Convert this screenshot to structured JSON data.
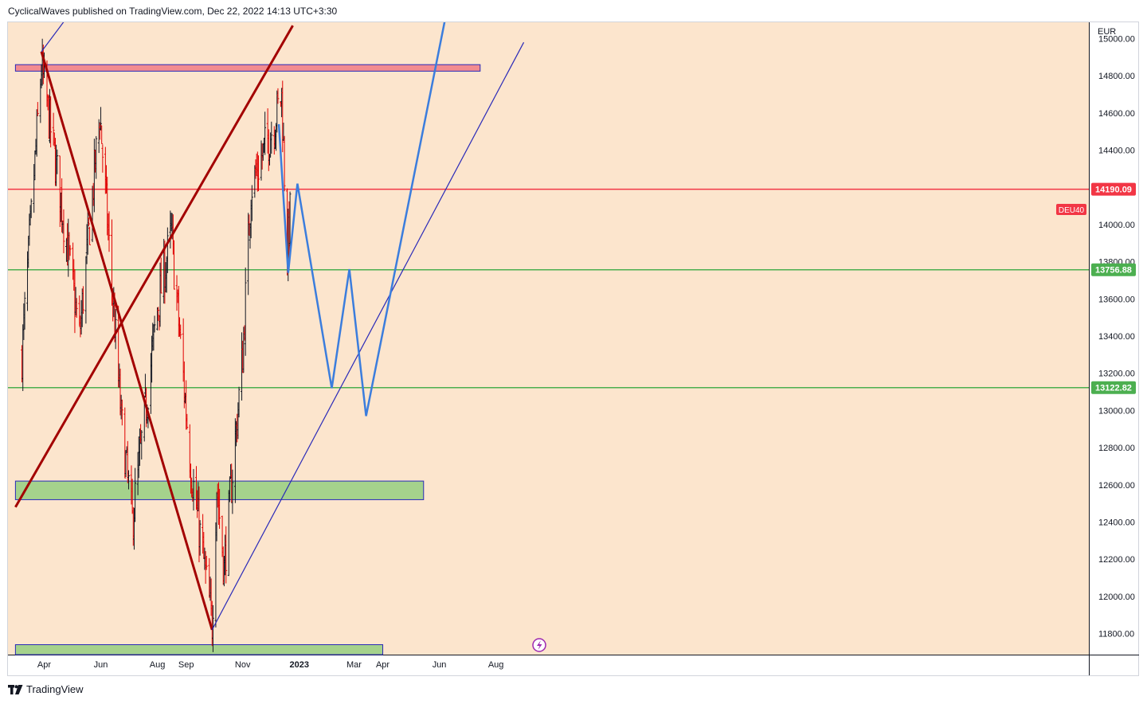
{
  "header": {
    "published_line": "CyclicalWaves published on TradingView.com, Dec 22, 2022 14:13 UTC+3:30"
  },
  "footer": {
    "brand": "TradingView",
    "logo_icon": "tradingview-logo-icon"
  },
  "chart_data": {
    "type": "candlestick",
    "symbol": "DEU40",
    "currency": "EUR",
    "ylim": [
      11680,
      15050
    ],
    "y_ticks": [
      11800,
      12000,
      12200,
      12400,
      12600,
      12800,
      13000,
      13200,
      13400,
      13600,
      13800,
      14000,
      14200,
      14400,
      14600,
      14800,
      15000
    ],
    "y_tick_labels": [
      "11800.00",
      "12000.00",
      "12200.00",
      "12400.00",
      "12600.00",
      "12800.00",
      "13000.00",
      "13200.00",
      "13400.00",
      "13600.00",
      "13800.00",
      "14000.00",
      "14200.00",
      "14400.00",
      "14600.00",
      "14800.00",
      "15000.00"
    ],
    "x_ticks": [
      {
        "date": "2022-04-01",
        "label": "Apr"
      },
      {
        "date": "2022-06-01",
        "label": "Jun"
      },
      {
        "date": "2022-08-01",
        "label": "Aug"
      },
      {
        "date": "2022-09-01",
        "label": "Sep"
      },
      {
        "date": "2022-11-01",
        "label": "Nov"
      },
      {
        "date": "2023-01-01",
        "label": "2023"
      },
      {
        "date": "2023-03-01",
        "label": "Mar"
      },
      {
        "date": "2023-04-01",
        "label": "Apr"
      },
      {
        "date": "2023-06-01",
        "label": "Jun"
      },
      {
        "date": "2023-08-01",
        "label": "Aug"
      }
    ],
    "price_path": [
      {
        "date": "2022-03-08",
        "close": 13300
      },
      {
        "date": "2022-03-29",
        "close": 14850
      },
      {
        "date": "2022-04-20",
        "close": 14100
      },
      {
        "date": "2022-05-09",
        "close": 13400
      },
      {
        "date": "2022-05-31",
        "close": 14600
      },
      {
        "date": "2022-06-23",
        "close": 12950
      },
      {
        "date": "2022-07-05",
        "close": 12400
      },
      {
        "date": "2022-08-01",
        "close": 13550
      },
      {
        "date": "2022-08-16",
        "close": 13950
      },
      {
        "date": "2022-09-06",
        "close": 12700
      },
      {
        "date": "2022-09-29",
        "close": 11850
      },
      {
        "date": "2022-10-04",
        "close": 12600
      },
      {
        "date": "2022-10-12",
        "close": 12150
      },
      {
        "date": "2022-11-01",
        "close": 13300
      },
      {
        "date": "2022-11-10",
        "close": 14200
      },
      {
        "date": "2022-12-05",
        "close": 14550
      },
      {
        "date": "2022-12-13",
        "close": 14700
      },
      {
        "date": "2022-12-19",
        "close": 13850
      },
      {
        "date": "2022-12-22",
        "close": 14050
      }
    ],
    "horizontal_levels": [
      {
        "value": 14190.09,
        "label": "14190.09",
        "color": "#f23645"
      },
      {
        "value": 13756.88,
        "label": "13756.88",
        "color": "#4caf50"
      },
      {
        "value": 13122.82,
        "label": "13122.82",
        "color": "#4caf50"
      }
    ],
    "symbol_tag": {
      "label": "DEU40",
      "color": "#f23645"
    },
    "zones": [
      {
        "name": "resistance-zone",
        "from": "2022-03-01",
        "to": "2023-07-15",
        "low": 14825,
        "high": 14860,
        "color": "#f28b90"
      },
      {
        "name": "support-zone",
        "from": "2022-03-01",
        "to": "2023-05-15",
        "low": 12520,
        "high": 12620,
        "color": "#a5d28c"
      },
      {
        "name": "bottom-zone",
        "from": "2022-03-01",
        "to": "2023-04-01",
        "low": 11680,
        "high": 11740,
        "color": "#a5d28c"
      }
    ],
    "trendlines": [
      {
        "name": "descending-trendline",
        "color": "#a30000",
        "points": [
          {
            "date": "2022-03-29",
            "value": 14930
          },
          {
            "date": "2022-09-29",
            "value": 11820
          }
        ]
      },
      {
        "name": "ascending-channel-line",
        "color": "#a30000",
        "points": [
          {
            "date": "2022-03-01",
            "value": 12480
          },
          {
            "date": "2022-12-25",
            "value": 15070
          }
        ]
      },
      {
        "name": "support-trendline",
        "color": "#2929b8",
        "points": [
          {
            "date": "2022-09-29",
            "value": 11820
          },
          {
            "date": "2023-08-31",
            "value": 14980
          }
        ]
      },
      {
        "name": "upper-trendline",
        "color": "#2929b8",
        "points": [
          {
            "date": "2022-03-29",
            "value": 14930
          },
          {
            "date": "2022-05-01",
            "value": 15150
          }
        ]
      }
    ],
    "projection": {
      "color": "#3b7ddd",
      "points": [
        {
          "date": "2022-12-10",
          "value": 14540
        },
        {
          "date": "2022-12-20",
          "value": 13740
        },
        {
          "date": "2022-12-30",
          "value": 14220
        },
        {
          "date": "2023-02-05",
          "value": 13120
        },
        {
          "date": "2023-02-24",
          "value": 13760
        },
        {
          "date": "2023-03-14",
          "value": 12970
        },
        {
          "date": "2023-06-15",
          "value": 15300
        }
      ]
    },
    "grid": false,
    "background_color": "#fce5cd"
  }
}
